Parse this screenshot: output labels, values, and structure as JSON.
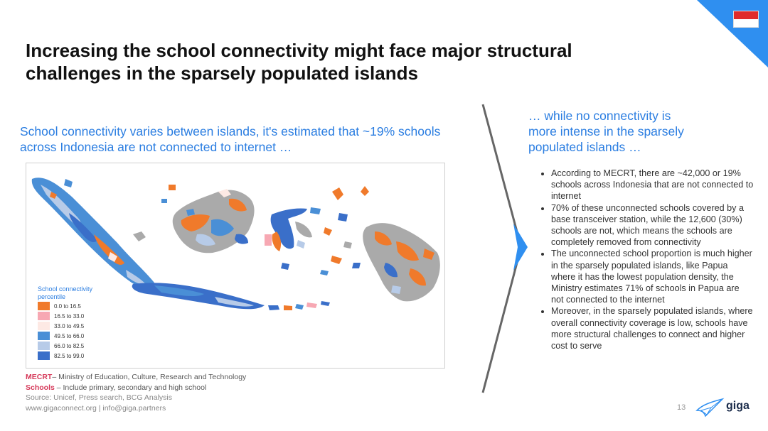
{
  "slide": {
    "title_line1": "Increasing the school connectivity might face major structural",
    "title_line2": "challenges in the sparsely populated islands",
    "left_subtitle_line1": "School connectivity varies between islands, it's estimated that ~19% schools",
    "left_subtitle_line2": "across Indonesia are not connected to internet …",
    "right_subtitle_line1": "… while no connectivity is",
    "right_subtitle_line2": "more intense in the sparsely",
    "right_subtitle_line3": "populated islands …",
    "page_number": "13",
    "logo_text": "giga",
    "flag_colors": {
      "top": "#e02b2b",
      "bottom": "#ffffff"
    },
    "accent_color": "#2a7de1"
  },
  "legend": {
    "title_line1": "School connectivity",
    "title_line2": "percentile",
    "items": [
      {
        "label": "0.0 to 16.5",
        "color": "#f07a2b"
      },
      {
        "label": "16.5 to 33.0",
        "color": "#f7a8b3"
      },
      {
        "label": "33.0 to 49.5",
        "color": "#fde9e4"
      },
      {
        "label": "49.5 to 66.0",
        "color": "#4a8fd6"
      },
      {
        "label": "66.0 to 82.5",
        "color": "#b7cbe8"
      },
      {
        "label": "82.5 to 99.0",
        "color": "#3a6fc9"
      }
    ]
  },
  "bullets": [
    "According to MECRT, there are ~42,000 or 19% schools across Indonesia that are not connected to internet",
    "70% of these unconnected schools covered by a base transceiver station, while the 12,600 (30%) schools are not, which means the schools are completely removed from connectivity",
    "The unconnected school proportion is much higher in the sparsely populated islands, like Papua where it has the lowest population density, the Ministry estimates 71% of schools in Papua are not connected to the internet",
    "Moreover, in the sparsely populated islands, where overall connectivity coverage is low, schools have more structural challenges to connect and higher cost to serve"
  ],
  "notes": {
    "mecrt_key": "MECRT",
    "mecrt_text": "– Ministry of Education, Culture, Research and Technology",
    "schools_key": "Schools",
    "schools_text": " – Include primary, secondary and high school",
    "source": "Source: Unicef, Press search, BCG Analysis",
    "links": "www.gigaconnect.org  |  info@giga.partners"
  }
}
